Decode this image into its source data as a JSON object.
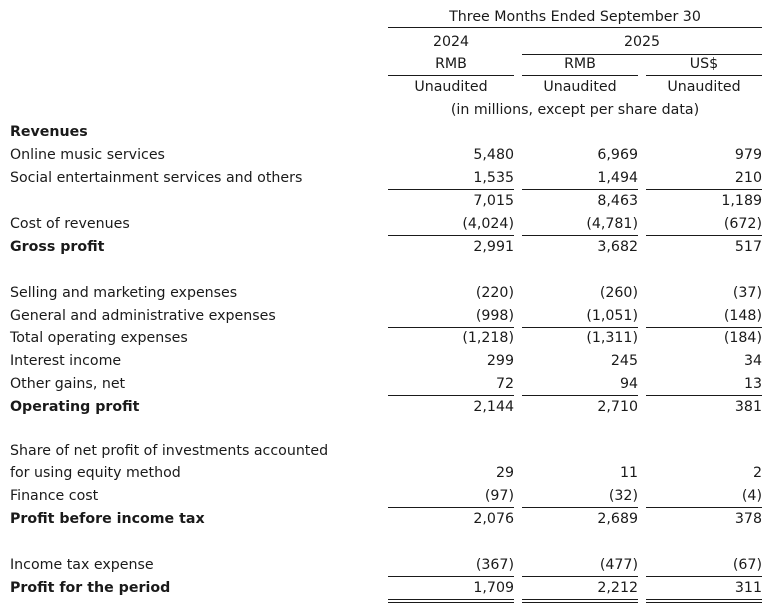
{
  "header": {
    "period": "Three Months Ended September 30",
    "year_2024": "2024",
    "year_2025": "2025",
    "currency_1": "RMB",
    "currency_2": "RMB",
    "currency_3": "US$",
    "audit_1": "Unaudited",
    "audit_2": "Unaudited",
    "audit_3": "Unaudited",
    "units": "(in millions, except per share data)"
  },
  "rows": {
    "revenues": {
      "label": "Revenues"
    },
    "online_music": {
      "label": "Online music services",
      "v1": "5,480",
      "v2": "6,969",
      "v3": "979"
    },
    "social_ent": {
      "label": "Social entertainment services and others",
      "v1": "1,535",
      "v2": "1,494",
      "v3": "210"
    },
    "total_rev": {
      "v1": "7,015",
      "v2": "8,463",
      "v3": "1,189"
    },
    "cost_rev": {
      "label": "Cost of revenues",
      "v1": "(4,024)",
      "v2": "(4,781)",
      "v3": "(672)"
    },
    "gross_profit": {
      "label": "Gross profit",
      "v1": "2,991",
      "v2": "3,682",
      "v3": "517"
    },
    "selling": {
      "label": "Selling and marketing expenses",
      "v1": "(220)",
      "v2": "(260)",
      "v3": "(37)"
    },
    "general_admin": {
      "label": "General and administrative expenses",
      "v1": "(998)",
      "v2": "(1,051)",
      "v3": "(148)"
    },
    "total_opex": {
      "label": "Total operating expenses",
      "v1": "(1,218)",
      "v2": "(1,311)",
      "v3": "(184)"
    },
    "interest_income": {
      "label": "Interest income",
      "v1": "299",
      "v2": "245",
      "v3": "34"
    },
    "other_gains": {
      "label": "Other gains, net",
      "v1": "72",
      "v2": "94",
      "v3": "13"
    },
    "operating_profit": {
      "label": "Operating profit",
      "v1": "2,144",
      "v2": "2,710",
      "v3": "381"
    },
    "share_profit": {
      "label_1": "Share of net profit of investments accounted",
      "label_2": "for using equity method",
      "v1": "29",
      "v2": "11",
      "v3": "2"
    },
    "finance_cost": {
      "label": "Finance cost",
      "v1": "(97)",
      "v2": "(32)",
      "v3": "(4)"
    },
    "profit_before_tax": {
      "label": "Profit before income tax",
      "v1": "2,076",
      "v2": "2,689",
      "v3": "378"
    },
    "income_tax": {
      "label": "Income tax expense",
      "v1": "(367)",
      "v2": "(477)",
      "v3": "(67)"
    },
    "profit_period": {
      "label": "Profit for the period",
      "v1": "1,709",
      "v2": "2,212",
      "v3": "311"
    }
  }
}
